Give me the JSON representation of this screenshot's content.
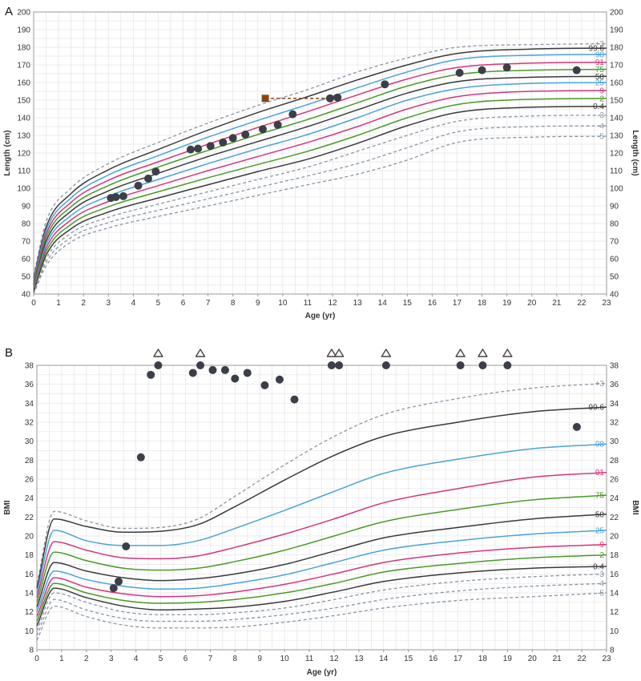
{
  "chart_data": [
    {
      "type": "line",
      "panel": "A",
      "title": "",
      "xlabel": "Age (yr)",
      "ylabel": "Length (cm)",
      "ylabel_right": "Length (cm)",
      "xlim": [
        0,
        23
      ],
      "ylim": [
        40,
        200
      ],
      "x_ticks": [
        0,
        1,
        2,
        3,
        4,
        5,
        6,
        7,
        8,
        9,
        10,
        11,
        12,
        13,
        14,
        15,
        16,
        17,
        18,
        19,
        20,
        21,
        22,
        23
      ],
      "y_ticks": [
        40,
        50,
        60,
        70,
        80,
        90,
        100,
        110,
        120,
        130,
        140,
        150,
        160,
        170,
        180,
        190,
        200
      ],
      "centiles": [
        {
          "name": "+3",
          "label": "+3",
          "color": "#8a96a6",
          "dashed": true,
          "values": [
            50.5,
            81,
            100,
            114,
            126,
            137,
            147,
            156,
            166,
            174,
            180,
            181.5,
            182
          ]
        },
        {
          "name": "99.6",
          "label": "99.6",
          "color": "#3a3a3a",
          "dashed": false,
          "values": [
            49,
            78,
            97,
            110.5,
            122,
            133,
            143,
            152,
            161.5,
            170,
            176.5,
            179,
            179.5
          ]
        },
        {
          "name": "98",
          "label": "98",
          "color": "#4aa3d8",
          "dashed": false,
          "values": [
            48,
            76,
            94.5,
            107.5,
            118.5,
            129,
            138.5,
            147.5,
            157,
            166,
            173,
            175.5,
            176
          ]
        },
        {
          "name": "91",
          "label": "91",
          "color": "#d6347a",
          "dashed": false,
          "values": [
            47,
            74,
            92,
            104.5,
            115,
            125,
            134.5,
            143.5,
            153,
            162,
            168.5,
            171,
            171.5
          ]
        },
        {
          "name": "75",
          "label": "75",
          "color": "#4a9a2a",
          "dashed": false,
          "values": [
            46,
            72,
            89.5,
            101.5,
            112,
            121.5,
            130.5,
            139,
            148.5,
            158,
            164.5,
            167,
            167.5
          ]
        },
        {
          "name": "50",
          "label": "50",
          "color": "#3a3a3a",
          "dashed": false,
          "values": [
            45,
            70,
            87,
            98.5,
            108.5,
            118,
            126.5,
            135,
            144.5,
            154,
            160.5,
            163,
            163.5
          ]
        },
        {
          "name": "25",
          "label": "25",
          "color": "#4aa3d8",
          "dashed": false,
          "values": [
            44,
            68,
            84.5,
            95.5,
            105,
            114,
            122.5,
            130.5,
            140,
            150,
            156.5,
            159.5,
            160
          ]
        },
        {
          "name": "9",
          "label": "9",
          "color": "#d6347a",
          "dashed": false,
          "values": [
            43,
            66,
            82,
            92.5,
            101.5,
            110,
            118,
            126,
            135,
            145,
            152,
            155,
            155.5
          ]
        },
        {
          "name": "2",
          "label": "2",
          "color": "#4a9a2a",
          "dashed": false,
          "values": [
            42,
            64,
            79.5,
            89.5,
            98,
            106,
            113.5,
            121,
            130,
            140,
            147.5,
            150.5,
            151
          ]
        },
        {
          "name": "0.4",
          "label": "0.4",
          "color": "#3a3a3a",
          "dashed": false,
          "values": [
            41,
            62,
            77,
            86.5,
            94.5,
            102,
            109.5,
            116.5,
            125.5,
            135.5,
            143,
            146,
            146.5
          ]
        },
        {
          "name": "-3",
          "label": "-3",
          "color": "#8a96a6",
          "dashed": true,
          "values": [
            40.5,
            60,
            74.5,
            83.5,
            91,
            98,
            105,
            112,
            121,
            130,
            138,
            141,
            141.5
          ]
        },
        {
          "name": "-4",
          "label": "-4",
          "color": "#8a96a6",
          "dashed": true,
          "values": [
            40,
            58,
            72,
            80.5,
            87.5,
            94,
            100.5,
            107,
            114,
            123,
            132,
            135,
            135.5
          ]
        },
        {
          "name": "-5",
          "label": "-5",
          "color": "#8a96a6",
          "dashed": true,
          "values": [
            40,
            56,
            69.5,
            77.5,
            84,
            90,
            96,
            102,
            108,
            116,
            126,
            129,
            129.5
          ]
        }
      ],
      "centile_x": [
        0,
        0.5,
        1.5,
        3,
        5,
        7,
        9,
        11,
        13,
        15,
        17,
        20,
        23
      ],
      "points": [
        {
          "x": 3.1,
          "y": 94.5
        },
        {
          "x": 3.3,
          "y": 95
        },
        {
          "x": 3.6,
          "y": 95.5
        },
        {
          "x": 4.2,
          "y": 101.5
        },
        {
          "x": 4.6,
          "y": 105.5
        },
        {
          "x": 4.9,
          "y": 109.5
        },
        {
          "x": 6.3,
          "y": 122
        },
        {
          "x": 6.6,
          "y": 122.5
        },
        {
          "x": 7.1,
          "y": 124
        },
        {
          "x": 7.6,
          "y": 126
        },
        {
          "x": 8.0,
          "y": 128.5
        },
        {
          "x": 8.5,
          "y": 130.5
        },
        {
          "x": 9.2,
          "y": 133.5
        },
        {
          "x": 9.8,
          "y": 136
        },
        {
          "x": 10.4,
          "y": 142
        },
        {
          "x": 11.9,
          "y": 151
        },
        {
          "x": 12.2,
          "y": 151.5
        },
        {
          "x": 14.1,
          "y": 159
        },
        {
          "x": 17.1,
          "y": 165.5
        },
        {
          "x": 18.0,
          "y": 167
        },
        {
          "x": 19.0,
          "y": 168.5
        },
        {
          "x": 21.8,
          "y": 167
        }
      ],
      "mid_parental": {
        "x": 9.3,
        "y": 151,
        "line_to_x": 12.0,
        "color": "#8b4513"
      }
    },
    {
      "type": "line",
      "panel": "B",
      "title": "",
      "xlabel": "Age (yr)",
      "ylabel": "BMI",
      "ylabel_right": "BMI",
      "xlim": [
        0,
        23
      ],
      "ylim": [
        8,
        38
      ],
      "x_ticks": [
        0,
        1,
        2,
        3,
        4,
        5,
        6,
        7,
        8,
        9,
        10,
        11,
        12,
        13,
        14,
        15,
        16,
        17,
        18,
        19,
        20,
        21,
        22,
        23
      ],
      "y_ticks": [
        8,
        10,
        12,
        14,
        16,
        18,
        20,
        22,
        24,
        26,
        28,
        30,
        32,
        34,
        36,
        38
      ],
      "centiles": [
        {
          "name": "+3",
          "label": "+3",
          "color": "#8a96a6",
          "dashed": true,
          "values": [
            15,
            22.6,
            21.6,
            20.8,
            20.9,
            21.8,
            24.2,
            27.5,
            30.5,
            32.8,
            34.5,
            35.6,
            36.1
          ]
        },
        {
          "name": "99.6",
          "label": "99.6",
          "color": "#3a3a3a",
          "dashed": false,
          "values": [
            14.5,
            21.8,
            21,
            20.4,
            20.5,
            21.2,
            23.1,
            25.9,
            28.5,
            30.5,
            32,
            33.1,
            33.6
          ]
        },
        {
          "name": "98",
          "label": "98",
          "color": "#4aa3d8",
          "dashed": false,
          "values": [
            14,
            20.6,
            19.5,
            19,
            19,
            19.5,
            20.8,
            22.7,
            24.7,
            26.6,
            28.1,
            29.2,
            29.7
          ]
        },
        {
          "name": "91",
          "label": "91",
          "color": "#d6347a",
          "dashed": false,
          "values": [
            13.5,
            19.4,
            18.5,
            17.7,
            17.6,
            17.9,
            18.8,
            20.2,
            21.8,
            23.5,
            25,
            26.2,
            26.7
          ]
        },
        {
          "name": "75",
          "label": "75",
          "color": "#4a9a2a",
          "dashed": false,
          "values": [
            13,
            18.3,
            17.4,
            16.6,
            16.4,
            16.6,
            17.3,
            18.5,
            20,
            21.5,
            22.8,
            23.8,
            24.3
          ]
        },
        {
          "name": "50",
          "label": "50",
          "color": "#3a3a3a",
          "dashed": false,
          "values": [
            12.5,
            17.2,
            16.3,
            15.6,
            15.3,
            15.5,
            16,
            17,
            18.4,
            19.8,
            20.9,
            21.8,
            22.3
          ]
        },
        {
          "name": "25",
          "label": "25",
          "color": "#4aa3d8",
          "dashed": false,
          "values": [
            12,
            16.3,
            15.4,
            14.7,
            14.4,
            14.5,
            15,
            15.9,
            17.2,
            18.5,
            19.5,
            20.2,
            20.6
          ]
        },
        {
          "name": "9",
          "label": "9",
          "color": "#d6347a",
          "dashed": false,
          "values": [
            11.5,
            15.6,
            14.6,
            13.9,
            13.6,
            13.7,
            14.1,
            14.9,
            16,
            17.2,
            18.2,
            18.8,
            19.1
          ]
        },
        {
          "name": "2",
          "label": "2",
          "color": "#4a9a2a",
          "dashed": false,
          "values": [
            11,
            15,
            14,
            13.2,
            12.9,
            13,
            13.3,
            14,
            15,
            16.2,
            17.1,
            17.7,
            18
          ]
        },
        {
          "name": "0.4",
          "label": "0.4",
          "color": "#3a3a3a",
          "dashed": false,
          "values": [
            10.5,
            14.5,
            13.5,
            12.6,
            12.2,
            12.3,
            12.5,
            13.1,
            14.1,
            15.2,
            16.1,
            16.6,
            16.8
          ]
        },
        {
          "name": "-3",
          "label": "-3",
          "color": "#8a96a6",
          "dashed": true,
          "values": [
            10,
            14,
            13,
            12,
            11.7,
            11.7,
            11.9,
            12.4,
            13.3,
            14.3,
            15.2,
            15.7,
            16
          ]
        },
        {
          "name": "-4",
          "label": "-4",
          "color": "#8a96a6",
          "dashed": true,
          "values": [
            9.5,
            13.3,
            12.2,
            11.3,
            11,
            11,
            11.2,
            11.7,
            12.4,
            13.3,
            14.2,
            14.7,
            15
          ]
        },
        {
          "name": "-5",
          "label": "-5",
          "color": "#8a96a6",
          "dashed": true,
          "values": [
            9,
            12.6,
            11.5,
            10.6,
            10.3,
            10.3,
            10.4,
            10.9,
            11.6,
            12.4,
            13.2,
            13.6,
            14
          ]
        }
      ],
      "centile_x": [
        0,
        0.7,
        2,
        3.5,
        5,
        6.5,
        8,
        10,
        12,
        14,
        17,
        20,
        23
      ],
      "points": [
        {
          "x": 3.1,
          "y": 14.5
        },
        {
          "x": 3.3,
          "y": 15.2
        },
        {
          "x": 3.6,
          "y": 18.9
        },
        {
          "x": 4.2,
          "y": 28.3
        },
        {
          "x": 4.6,
          "y": 37
        },
        {
          "x": 6.3,
          "y": 37.2
        },
        {
          "x": 7.1,
          "y": 37.5
        },
        {
          "x": 7.6,
          "y": 37.5
        },
        {
          "x": 8.0,
          "y": 36.6
        },
        {
          "x": 8.5,
          "y": 37.2
        },
        {
          "x": 9.2,
          "y": 35.9
        },
        {
          "x": 9.8,
          "y": 36.5
        },
        {
          "x": 10.4,
          "y": 34.4
        },
        {
          "x": 21.8,
          "y": 31.5
        }
      ],
      "offscale_points": [
        {
          "x": 4.9,
          "y": 38
        },
        {
          "x": 6.6,
          "y": 38
        },
        {
          "x": 11.9,
          "y": 38
        },
        {
          "x": 12.2,
          "y": 38
        },
        {
          "x": 14.1,
          "y": 38
        },
        {
          "x": 17.1,
          "y": 38
        },
        {
          "x": 18.0,
          "y": 38
        },
        {
          "x": 19.0,
          "y": 38
        }
      ]
    }
  ]
}
